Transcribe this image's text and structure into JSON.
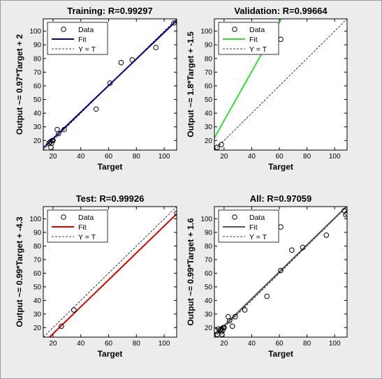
{
  "chart_data": [
    {
      "type": "scatter",
      "title": "Training: R=0.99297",
      "xlabel": "Target",
      "ylabel": "Output ~= 0.97*Target + 2",
      "xlim": [
        13,
        109
      ],
      "ylim": [
        13,
        109
      ],
      "xticks": [
        20,
        40,
        60,
        80,
        100
      ],
      "yticks": [
        20,
        30,
        40,
        50,
        60,
        70,
        80,
        90,
        100
      ],
      "fit_color": "#00008b",
      "fit": {
        "slope": 0.97,
        "intercept": 2
      },
      "legend": [
        "Data",
        "Fit",
        "Y = T"
      ],
      "legend_position": "top-left",
      "points": [
        [
          17,
          18
        ],
        [
          18,
          19
        ],
        [
          18.5,
          15
        ],
        [
          19,
          18
        ],
        [
          19.5,
          20
        ],
        [
          20,
          20
        ],
        [
          23,
          28
        ],
        [
          24,
          25
        ],
        [
          28,
          28
        ],
        [
          51,
          43
        ],
        [
          61,
          62
        ],
        [
          69,
          77
        ],
        [
          77,
          79
        ],
        [
          94,
          88
        ],
        [
          107,
          106
        ]
      ]
    },
    {
      "type": "scatter",
      "title": "Validation: R=0.99664",
      "xlabel": "Target",
      "ylabel": "Output ~= 1.8*Target + -1.5",
      "xlim": [
        13,
        109
      ],
      "ylim": [
        13,
        109
      ],
      "xticks": [
        20,
        40,
        60,
        80,
        100
      ],
      "yticks": [
        20,
        30,
        40,
        50,
        60,
        70,
        80,
        90,
        100
      ],
      "fit_color": "#33dd33",
      "fit": {
        "slope": 1.8,
        "intercept": -1.5
      },
      "legend": [
        "Data",
        "Fit",
        "Y = T"
      ],
      "legend_position": "top-left",
      "points": [
        [
          15,
          15
        ],
        [
          18,
          17
        ],
        [
          61,
          94
        ]
      ]
    },
    {
      "type": "scatter",
      "title": "Test: R=0.99926",
      "xlabel": "Target",
      "ylabel": "Output ~= 0.99*Target + -4.3",
      "xlim": [
        13,
        109
      ],
      "ylim": [
        13,
        109
      ],
      "xticks": [
        20,
        40,
        60,
        80,
        100
      ],
      "yticks": [
        20,
        30,
        40,
        50,
        60,
        70,
        80,
        90,
        100
      ],
      "fit_color": "#dd0000",
      "fit": {
        "slope": 0.99,
        "intercept": -4.3
      },
      "legend": [
        "Data",
        "Fit",
        "Y = T"
      ],
      "legend_position": "top-left",
      "points": [
        [
          26,
          21
        ],
        [
          35,
          33
        ],
        [
          109,
          104
        ]
      ]
    },
    {
      "type": "scatter",
      "title": "All: R=0.97059",
      "xlabel": "Target",
      "ylabel": "Output ~= 0.99*Target + 1.6",
      "xlim": [
        13,
        109
      ],
      "ylim": [
        13,
        109
      ],
      "xticks": [
        20,
        40,
        60,
        80,
        100
      ],
      "yticks": [
        20,
        30,
        40,
        50,
        60,
        70,
        80,
        90,
        100
      ],
      "fit_color": "#555555",
      "fit": {
        "slope": 0.99,
        "intercept": 1.6
      },
      "legend": [
        "Data",
        "Fit",
        "Y = T"
      ],
      "legend_position": "top-left",
      "points": [
        [
          14,
          18
        ],
        [
          15,
          15
        ],
        [
          16,
          19
        ],
        [
          17,
          18
        ],
        [
          18,
          17
        ],
        [
          18,
          19
        ],
        [
          18.5,
          15
        ],
        [
          19,
          18
        ],
        [
          19.5,
          20
        ],
        [
          20,
          20
        ],
        [
          23,
          28
        ],
        [
          24,
          25
        ],
        [
          26,
          21
        ],
        [
          28,
          28
        ],
        [
          35,
          33
        ],
        [
          51,
          43
        ],
        [
          61,
          62
        ],
        [
          61,
          94
        ],
        [
          69,
          77
        ],
        [
          77,
          79
        ],
        [
          94,
          88
        ],
        [
          107,
          106
        ],
        [
          108,
          103
        ],
        [
          109,
          104
        ]
      ]
    }
  ]
}
